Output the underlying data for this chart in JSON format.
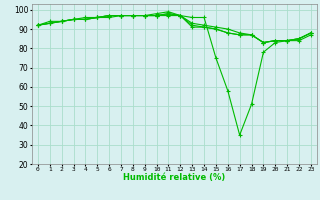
{
  "xlabel": "Humidité relative (%)",
  "hours": [
    0,
    1,
    2,
    3,
    4,
    5,
    6,
    7,
    8,
    9,
    10,
    11,
    12,
    13,
    14,
    15,
    16,
    17,
    18,
    19,
    20,
    21,
    22,
    23
  ],
  "series": [
    [
      92,
      94,
      94,
      95,
      95,
      96,
      97,
      97,
      97,
      97,
      97,
      98,
      97,
      96,
      96,
      75,
      58,
      35,
      51,
      78,
      83,
      84,
      84,
      87
    ],
    [
      92,
      93,
      94,
      95,
      96,
      96,
      97,
      97,
      97,
      97,
      97,
      98,
      97,
      92,
      91,
      90,
      88,
      87,
      87,
      83,
      84,
      84,
      85,
      88
    ],
    [
      92,
      93,
      94,
      95,
      95,
      96,
      96,
      97,
      97,
      97,
      97,
      97,
      97,
      91,
      91,
      90,
      88,
      87,
      87,
      83,
      84,
      84,
      85,
      88
    ],
    [
      92,
      93,
      94,
      95,
      95,
      96,
      97,
      97,
      97,
      97,
      98,
      99,
      97,
      93,
      92,
      91,
      90,
      88,
      87,
      83,
      84,
      84,
      85,
      88
    ]
  ],
  "line_color": "#00bb00",
  "bg_color": "#d8f0f0",
  "grid_color": "#aaddcc",
  "ylim": [
    20,
    103
  ],
  "yticks": [
    20,
    30,
    40,
    50,
    60,
    70,
    80,
    90,
    100
  ],
  "marker": "+",
  "figsize": [
    3.2,
    2.0
  ],
  "dpi": 100
}
